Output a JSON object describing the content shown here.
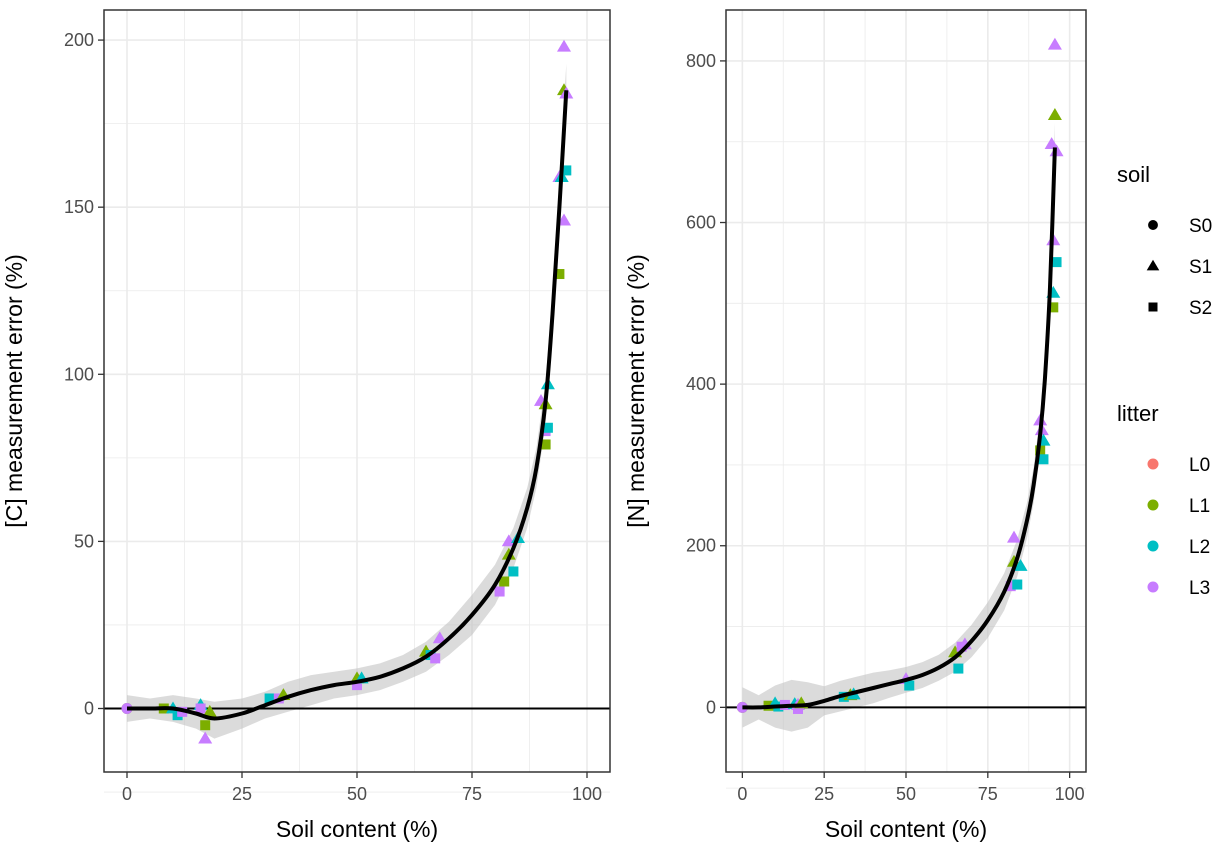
{
  "colors": {
    "L0": "#F8766D",
    "L1": "#7CAE00",
    "L2": "#00BFC4",
    "L3": "#C77CFF",
    "fit_line": "#000000",
    "ribbon": "#bebebe"
  },
  "legend": {
    "soil_title": "soil",
    "soil_items": [
      {
        "label": "S0",
        "shape": "circle"
      },
      {
        "label": "S1",
        "shape": "triangle"
      },
      {
        "label": "S2",
        "shape": "square"
      }
    ],
    "litter_title": "litter",
    "litter_items": [
      {
        "label": "L0",
        "color": "#F8766D"
      },
      {
        "label": "L1",
        "color": "#7CAE00"
      },
      {
        "label": "L2",
        "color": "#00BFC4"
      },
      {
        "label": "L3",
        "color": "#C77CFF"
      }
    ]
  },
  "chart_data": [
    {
      "type": "scatter",
      "title": "",
      "xlabel": "Soil content (%)",
      "ylabel": "[C] measurement error (%)",
      "xlim": [
        -5,
        105
      ],
      "ylim": [
        -19,
        209
      ],
      "x_ticks": [
        0,
        25,
        50,
        75,
        100
      ],
      "y_ticks": [
        0,
        50,
        100,
        150,
        200
      ],
      "reference_line_y": 0,
      "grid": true,
      "points": [
        {
          "x": 0,
          "y": 0,
          "soil": "S0",
          "litter": "L1"
        },
        {
          "x": 0,
          "y": 0,
          "soil": "S0",
          "litter": "L3"
        },
        {
          "x": 8,
          "y": 0,
          "soil": "S2",
          "litter": "L1"
        },
        {
          "x": 10,
          "y": 0,
          "soil": "S1",
          "litter": "L2"
        },
        {
          "x": 11,
          "y": -2,
          "soil": "S2",
          "litter": "L2"
        },
        {
          "x": 12,
          "y": -1,
          "soil": "S2",
          "litter": "L3"
        },
        {
          "x": 16,
          "y": 1,
          "soil": "S1",
          "litter": "L2"
        },
        {
          "x": 16,
          "y": 0,
          "soil": "S2",
          "litter": "L3"
        },
        {
          "x": 17,
          "y": -5,
          "soil": "S2",
          "litter": "L1"
        },
        {
          "x": 17,
          "y": -9,
          "soil": "S1",
          "litter": "L3"
        },
        {
          "x": 18,
          "y": -1,
          "soil": "S1",
          "litter": "L1"
        },
        {
          "x": 31,
          "y": 3,
          "soil": "S2",
          "litter": "L2"
        },
        {
          "x": 33,
          "y": 3,
          "soil": "S2",
          "litter": "L3"
        },
        {
          "x": 34,
          "y": 4,
          "soil": "S1",
          "litter": "L1"
        },
        {
          "x": 50,
          "y": 7,
          "soil": "S2",
          "litter": "L3"
        },
        {
          "x": 50,
          "y": 9,
          "soil": "S1",
          "litter": "L1"
        },
        {
          "x": 51,
          "y": 9,
          "soil": "S1",
          "litter": "L2"
        },
        {
          "x": 65,
          "y": 17,
          "soil": "S1",
          "litter": "L1"
        },
        {
          "x": 66,
          "y": 16,
          "soil": "S2",
          "litter": "L2"
        },
        {
          "x": 67,
          "y": 15,
          "soil": "S2",
          "litter": "L3"
        },
        {
          "x": 68,
          "y": 21,
          "soil": "S1",
          "litter": "L3"
        },
        {
          "x": 81,
          "y": 35,
          "soil": "S2",
          "litter": "L3"
        },
        {
          "x": 82,
          "y": 38,
          "soil": "S2",
          "litter": "L1"
        },
        {
          "x": 83,
          "y": 46,
          "soil": "S1",
          "litter": "L1"
        },
        {
          "x": 83,
          "y": 50,
          "soil": "S1",
          "litter": "L3"
        },
        {
          "x": 84,
          "y": 41,
          "soil": "S2",
          "litter": "L2"
        },
        {
          "x": 85,
          "y": 51,
          "soil": "S1",
          "litter": "L2"
        },
        {
          "x": 90,
          "y": 92,
          "soil": "S1",
          "litter": "L3"
        },
        {
          "x": 91,
          "y": 79,
          "soil": "S2",
          "litter": "L1"
        },
        {
          "x": 91,
          "y": 83,
          "soil": "S2",
          "litter": "L3"
        },
        {
          "x": 91,
          "y": 91,
          "soil": "S1",
          "litter": "L1"
        },
        {
          "x": 91.5,
          "y": 84,
          "soil": "S2",
          "litter": "L2"
        },
        {
          "x": 91.5,
          "y": 97,
          "soil": "S1",
          "litter": "L2"
        },
        {
          "x": 94,
          "y": 130,
          "soil": "S2",
          "litter": "L1"
        },
        {
          "x": 94,
          "y": 159,
          "soil": "S1",
          "litter": "L3"
        },
        {
          "x": 94.5,
          "y": 159,
          "soil": "S1",
          "litter": "L2"
        },
        {
          "x": 95,
          "y": 146,
          "soil": "S1",
          "litter": "L3"
        },
        {
          "x": 95,
          "y": 185,
          "soil": "S1",
          "litter": "L1"
        },
        {
          "x": 95,
          "y": 198,
          "soil": "S1",
          "litter": "L3"
        },
        {
          "x": 95.5,
          "y": 161,
          "soil": "S2",
          "litter": "L2"
        },
        {
          "x": 95.5,
          "y": 184,
          "soil": "S1",
          "litter": "L3"
        }
      ],
      "smooth_fit": [
        {
          "x": 0,
          "y": 0,
          "lo": -4,
          "hi": 4
        },
        {
          "x": 5,
          "y": 0,
          "lo": -3,
          "hi": 3
        },
        {
          "x": 10,
          "y": 0,
          "lo": -4,
          "hi": 4
        },
        {
          "x": 15,
          "y": -1.5,
          "lo": -6,
          "hi": 3
        },
        {
          "x": 19,
          "y": -3,
          "lo": -9,
          "hi": 2
        },
        {
          "x": 25,
          "y": -1.5,
          "lo": -6,
          "hi": 3
        },
        {
          "x": 30,
          "y": 1,
          "lo": -3,
          "hi": 5
        },
        {
          "x": 35,
          "y": 3.5,
          "lo": -1,
          "hi": 8
        },
        {
          "x": 40,
          "y": 5.5,
          "lo": 1,
          "hi": 10
        },
        {
          "x": 45,
          "y": 7,
          "lo": 3,
          "hi": 11
        },
        {
          "x": 50,
          "y": 8,
          "lo": 4,
          "hi": 12
        },
        {
          "x": 55,
          "y": 9.5,
          "lo": 5.5,
          "hi": 13.5
        },
        {
          "x": 60,
          "y": 12,
          "lo": 8,
          "hi": 16
        },
        {
          "x": 65,
          "y": 15.5,
          "lo": 11,
          "hi": 20
        },
        {
          "x": 70,
          "y": 21,
          "lo": 16,
          "hi": 26
        },
        {
          "x": 75,
          "y": 28,
          "lo": 22,
          "hi": 34
        },
        {
          "x": 80,
          "y": 37,
          "lo": 31,
          "hi": 43
        },
        {
          "x": 84,
          "y": 48,
          "lo": 42,
          "hi": 54
        },
        {
          "x": 87,
          "y": 60,
          "lo": 54,
          "hi": 66
        },
        {
          "x": 89,
          "y": 72,
          "lo": 66,
          "hi": 78
        },
        {
          "x": 91,
          "y": 92,
          "lo": 85,
          "hi": 98
        },
        {
          "x": 92.5,
          "y": 118,
          "lo": 111,
          "hi": 125
        },
        {
          "x": 94,
          "y": 150,
          "lo": 142,
          "hi": 158
        },
        {
          "x": 95.5,
          "y": 185,
          "lo": 177,
          "hi": 193
        }
      ]
    },
    {
      "type": "scatter",
      "title": "",
      "xlabel": "Soil content (%)",
      "ylabel": "[N] measurement error (%)",
      "xlim": [
        -5,
        105
      ],
      "ylim": [
        -80,
        863
      ],
      "x_ticks": [
        0,
        25,
        50,
        75,
        100
      ],
      "y_ticks": [
        0,
        200,
        400,
        600,
        800
      ],
      "reference_line_y": 0,
      "grid": true,
      "points": [
        {
          "x": 0,
          "y": 0,
          "soil": "S0",
          "litter": "L1"
        },
        {
          "x": 0,
          "y": 0,
          "soil": "S0",
          "litter": "L3"
        },
        {
          "x": 8,
          "y": 2,
          "soil": "S2",
          "litter": "L1"
        },
        {
          "x": 10,
          "y": 5,
          "soil": "S1",
          "litter": "L2"
        },
        {
          "x": 11,
          "y": 1,
          "soil": "S2",
          "litter": "L2"
        },
        {
          "x": 13,
          "y": 3,
          "soil": "S2",
          "litter": "L3"
        },
        {
          "x": 16,
          "y": 4,
          "soil": "S1",
          "litter": "L2"
        },
        {
          "x": 17,
          "y": -2,
          "soil": "S2",
          "litter": "L3"
        },
        {
          "x": 17,
          "y": 3,
          "soil": "S1",
          "litter": "L3"
        },
        {
          "x": 18,
          "y": 5,
          "soil": "S1",
          "litter": "L1"
        },
        {
          "x": 31,
          "y": 13,
          "soil": "S2",
          "litter": "L2"
        },
        {
          "x": 33,
          "y": 15,
          "soil": "S1",
          "litter": "L1"
        },
        {
          "x": 34,
          "y": 16,
          "soil": "S1",
          "litter": "L2"
        },
        {
          "x": 50,
          "y": 35,
          "soil": "S1",
          "litter": "L3"
        },
        {
          "x": 51,
          "y": 27,
          "soil": "S2",
          "litter": "L2"
        },
        {
          "x": 65,
          "y": 68,
          "soil": "S1",
          "litter": "L1"
        },
        {
          "x": 66,
          "y": 48,
          "soil": "S2",
          "litter": "L2"
        },
        {
          "x": 67,
          "y": 75,
          "soil": "S2",
          "litter": "L3"
        },
        {
          "x": 68,
          "y": 78,
          "soil": "S1",
          "litter": "L3"
        },
        {
          "x": 82,
          "y": 150,
          "soil": "S2",
          "litter": "L3"
        },
        {
          "x": 83,
          "y": 180,
          "soil": "S1",
          "litter": "L1"
        },
        {
          "x": 83,
          "y": 210,
          "soil": "S1",
          "litter": "L3"
        },
        {
          "x": 84,
          "y": 152,
          "soil": "S2",
          "litter": "L2"
        },
        {
          "x": 85,
          "y": 175,
          "soil": "S1",
          "litter": "L2"
        },
        {
          "x": 91,
          "y": 318,
          "soil": "S2",
          "litter": "L1"
        },
        {
          "x": 91,
          "y": 355,
          "soil": "S1",
          "litter": "L3"
        },
        {
          "x": 91.5,
          "y": 343,
          "soil": "S1",
          "litter": "L3"
        },
        {
          "x": 92,
          "y": 330,
          "soil": "S1",
          "litter": "L2"
        },
        {
          "x": 92,
          "y": 307,
          "soil": "S2",
          "litter": "L2"
        },
        {
          "x": 94.5,
          "y": 697,
          "soil": "S1",
          "litter": "L3"
        },
        {
          "x": 95,
          "y": 495,
          "soil": "S2",
          "litter": "L1"
        },
        {
          "x": 95,
          "y": 513,
          "soil": "S1",
          "litter": "L2"
        },
        {
          "x": 95,
          "y": 578,
          "soil": "S1",
          "litter": "L3"
        },
        {
          "x": 95.5,
          "y": 733,
          "soil": "S1",
          "litter": "L1"
        },
        {
          "x": 95.5,
          "y": 820,
          "soil": "S1",
          "litter": "L3"
        },
        {
          "x": 96,
          "y": 551,
          "soil": "S2",
          "litter": "L2"
        },
        {
          "x": 96,
          "y": 688,
          "soil": "S1",
          "litter": "L3"
        }
      ],
      "smooth_fit": [
        {
          "x": 0,
          "y": 0,
          "lo": -25,
          "hi": 25
        },
        {
          "x": 5,
          "y": 0,
          "lo": -15,
          "hi": 15
        },
        {
          "x": 10,
          "y": 1,
          "lo": -25,
          "hi": 27
        },
        {
          "x": 15,
          "y": 2,
          "lo": -30,
          "hi": 34
        },
        {
          "x": 20,
          "y": 3,
          "lo": -25,
          "hi": 31
        },
        {
          "x": 25,
          "y": 8,
          "lo": -10,
          "hi": 26
        },
        {
          "x": 30,
          "y": 14,
          "lo": -5,
          "hi": 33
        },
        {
          "x": 35,
          "y": 19,
          "lo": 0,
          "hi": 38
        },
        {
          "x": 40,
          "y": 24,
          "lo": 5,
          "hi": 43
        },
        {
          "x": 45,
          "y": 29,
          "lo": 12,
          "hi": 46
        },
        {
          "x": 50,
          "y": 34,
          "lo": 18,
          "hi": 50
        },
        {
          "x": 55,
          "y": 40,
          "lo": 24,
          "hi": 56
        },
        {
          "x": 60,
          "y": 49,
          "lo": 33,
          "hi": 65
        },
        {
          "x": 65,
          "y": 62,
          "lo": 44,
          "hi": 80
        },
        {
          "x": 70,
          "y": 82,
          "lo": 62,
          "hi": 102
        },
        {
          "x": 75,
          "y": 108,
          "lo": 86,
          "hi": 130
        },
        {
          "x": 80,
          "y": 143,
          "lo": 120,
          "hi": 166
        },
        {
          "x": 84,
          "y": 185,
          "lo": 162,
          "hi": 208
        },
        {
          "x": 87,
          "y": 232,
          "lo": 210,
          "hi": 254
        },
        {
          "x": 89,
          "y": 275,
          "lo": 253,
          "hi": 297
        },
        {
          "x": 91,
          "y": 338,
          "lo": 314,
          "hi": 362
        },
        {
          "x": 92.5,
          "y": 410,
          "lo": 384,
          "hi": 436
        },
        {
          "x": 94,
          "y": 520,
          "lo": 492,
          "hi": 548
        },
        {
          "x": 95.5,
          "y": 693,
          "lo": 663,
          "hi": 723
        }
      ]
    }
  ]
}
